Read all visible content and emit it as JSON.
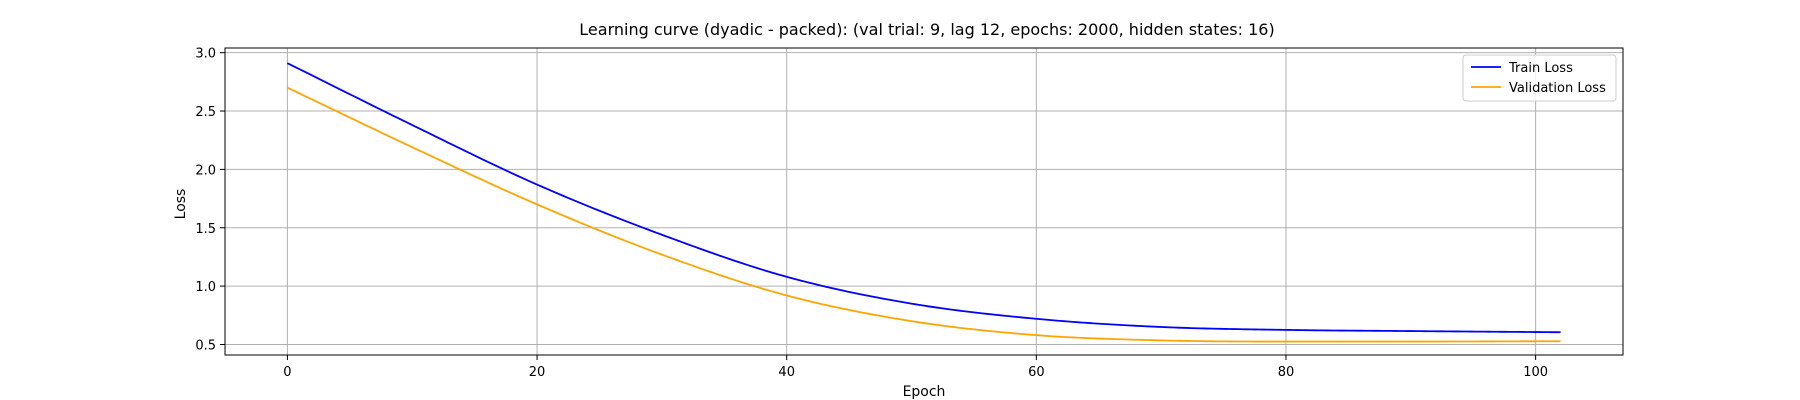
{
  "chart_data": {
    "type": "line",
    "title": "Learning curve (dyadic - packed): (val trial: 9, lag 12, epochs: 2000, hidden states: 16)",
    "xlabel": "Epoch",
    "ylabel": "Loss",
    "xlim": [
      -5,
      107
    ],
    "ylim": [
      0.41,
      3.04
    ],
    "xticks": [
      0,
      20,
      40,
      60,
      80,
      100
    ],
    "yticks": [
      0.5,
      1.0,
      1.5,
      2.0,
      2.5,
      3.0
    ],
    "xtick_labels": [
      "0",
      "20",
      "40",
      "60",
      "80",
      "100"
    ],
    "ytick_labels": [
      "0.5",
      "1.0",
      "1.5",
      "2.0",
      "2.5",
      "3.0"
    ],
    "grid": true,
    "legend_position": "top-right",
    "series": [
      {
        "name": "Train Loss",
        "color": "#0000ff",
        "x": [
          0,
          10,
          20,
          30,
          40,
          50,
          60,
          70,
          80,
          90,
          102
        ],
        "y": [
          2.91,
          2.38,
          1.87,
          1.44,
          1.08,
          0.85,
          0.72,
          0.65,
          0.625,
          0.615,
          0.605
        ]
      },
      {
        "name": "Validation Loss",
        "color": "#ffa500",
        "x": [
          0,
          10,
          20,
          30,
          40,
          50,
          60,
          70,
          80,
          90,
          102
        ],
        "y": [
          2.7,
          2.19,
          1.7,
          1.27,
          0.92,
          0.7,
          0.58,
          0.535,
          0.525,
          0.525,
          0.528
        ]
      }
    ]
  }
}
